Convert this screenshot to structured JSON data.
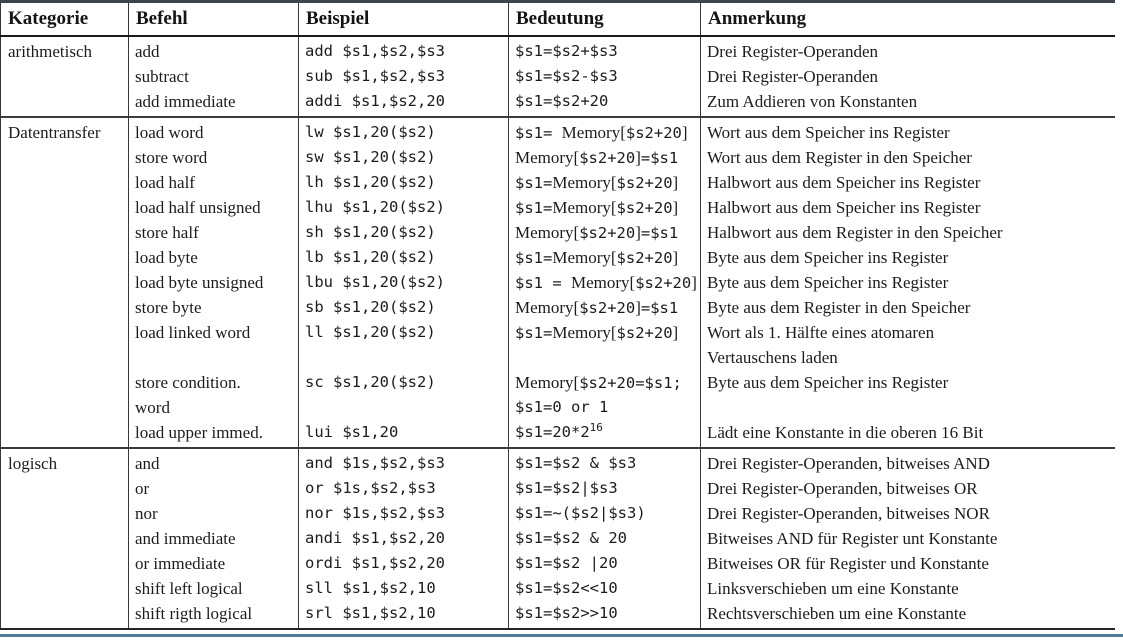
{
  "colors": {
    "background": "#ffffff",
    "text": "#1c1c20",
    "grid_line": "#36383b",
    "top_border": "#3e444b",
    "bottom_accent": "#4d7d9d"
  },
  "table": {
    "headers": [
      "Kategorie",
      "Befehl",
      "Beispiel",
      "Bedeutung",
      "Anmerkung"
    ],
    "sections": [
      {
        "kategorie": "arithmetisch",
        "befehl": [
          "add",
          "subtract",
          "add immediate"
        ],
        "beispiel": [
          "add $s1,$s2,$s3",
          "sub $s1,$s2,$s3",
          "addi $s1,$s2,20"
        ],
        "bedeutung": [
          "$s1=$s2+$s3",
          "$s1=$s2-$s3",
          "$s1=$s2+20"
        ],
        "anmerkung": [
          "Drei Register-Operanden",
          "Drei Register-Operanden",
          "Zum Addieren von Konstanten"
        ]
      },
      {
        "kategorie": "Datentransfer",
        "befehl": [
          "load word",
          "store word",
          "load half",
          "load half unsigned",
          "store half",
          "load byte",
          "load byte unsigned",
          "store byte",
          "load linked word",
          "",
          "store condition.",
          "word",
          "load upper immed."
        ],
        "beispiel": [
          "lw $s1,20($s2)",
          "sw $s1,20($s2)",
          "lh $s1,20($s2)",
          "lhu $s1,20($s2)",
          "sh $s1,20($s2)",
          "lb $s1,20($s2)",
          "lbu $s1,20($s2)",
          "sb $s1,20($s2)",
          "ll $s1,20($s2)",
          "",
          "sc $s1,20($s2)",
          "",
          "lui $s1,20"
        ],
        "bedeutung": [
          "$s1= Memory[$s2+20]",
          "Memory[$s2+20]=$s1",
          "$s1=Memory[$s2+20]",
          "$s1=Memory[$s2+20]",
          "Memory[$s2+20]=$s1",
          "$s1=Memory[$s2+20]",
          "$s1 = Memory[$s2+20]",
          "Memory[$s2+20]=$s1",
          "$s1=Memory[$s2+20]",
          "",
          "Memory[$s2+20=$s1;",
          "$s1=0 or 1",
          "$s1=20*2^16"
        ],
        "anmerkung": [
          "Wort aus dem Speicher ins Register",
          "Wort aus dem Register in den Speicher",
          "Halbwort aus dem Speicher ins Register",
          "Halbwort aus dem Speicher ins Register",
          "Halbwort aus dem Register in den Speicher",
          "Byte aus dem Speicher ins Register",
          "Byte aus dem Speicher ins Register",
          "Byte aus dem Register in den Speicher",
          "Wort als 1. Hälfte eines atomaren",
          "Vertauschens laden",
          "Byte aus dem Speicher ins Register",
          "",
          "Lädt eine Konstante in die oberen 16 Bit"
        ]
      },
      {
        "kategorie": "logisch",
        "befehl": [
          "and",
          "or",
          "nor",
          "and immediate",
          "or immediate",
          "shift left logical",
          "shift rigth logical"
        ],
        "beispiel": [
          "and $1s,$s2,$s3",
          "or $1s,$s2,$s3",
          "nor $1s,$s2,$s3",
          "andi $s1,$s2,20",
          "ordi $s1,$s2,20",
          "sll $s1,$s2,10",
          "srl $s1,$s2,10"
        ],
        "bedeutung": [
          "$s1=$s2 & $s3",
          "$s1=$s2|$s3",
          "$s1=~($s2|$s3)",
          "$s1=$s2 & 20",
          "$s1=$s2 |20",
          "$s1=$s2<<10",
          "$s1=$s2>>10"
        ],
        "anmerkung": [
          "Drei Register-Operanden, bitweises AND",
          "Drei Register-Operanden, bitweises OR",
          "Drei Register-Operanden, bitweises NOR",
          "Bitweises AND für Register unt Konstante",
          "Bitweises OR für Register und Konstante",
          "Linksverschieben um eine Konstante",
          "Rechtsverschieben um eine Konstante"
        ]
      }
    ]
  }
}
